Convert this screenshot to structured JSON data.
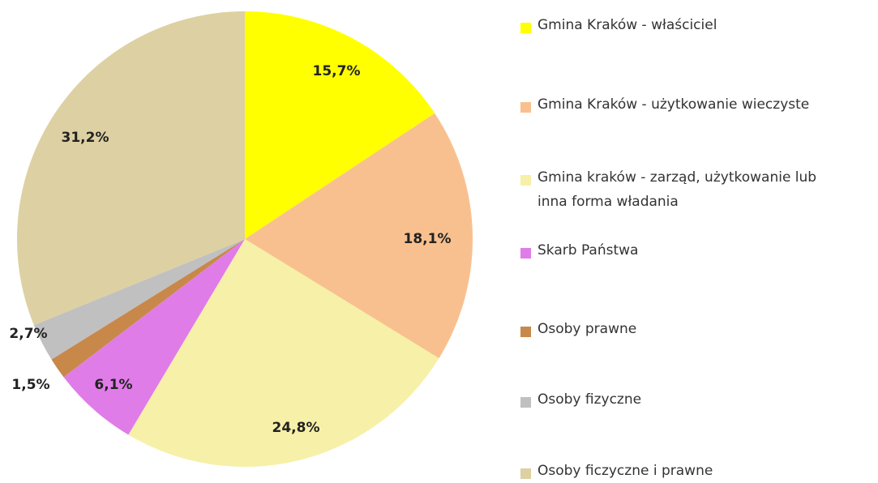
{
  "chart_data": {
    "type": "pie",
    "categories": [
      "Gmina Kraków - właściciel",
      "Gmina Kraków -  użytkowanie wieczyste",
      "Gmina kraków - zarząd, użytkowanie lub inna forma władania",
      "Skarb Państwa",
      "Osoby prawne",
      "Osoby fizyczne",
      "Osoby ficzyczne i prawne"
    ],
    "values": [
      15.7,
      18.1,
      24.8,
      6.1,
      1.5,
      2.7,
      31.2
    ],
    "value_labels": [
      "15,7%",
      "18,1%",
      "24,8%",
      "6,1%",
      "1,5%",
      "2,7%",
      "31,2%"
    ],
    "colors": [
      "#ffff00",
      "#f9c08f",
      "#f7f0a8",
      "#e07ce8",
      "#c8884a",
      "#c0c0c0",
      "#ddd0a2"
    ],
    "legend": "right"
  }
}
